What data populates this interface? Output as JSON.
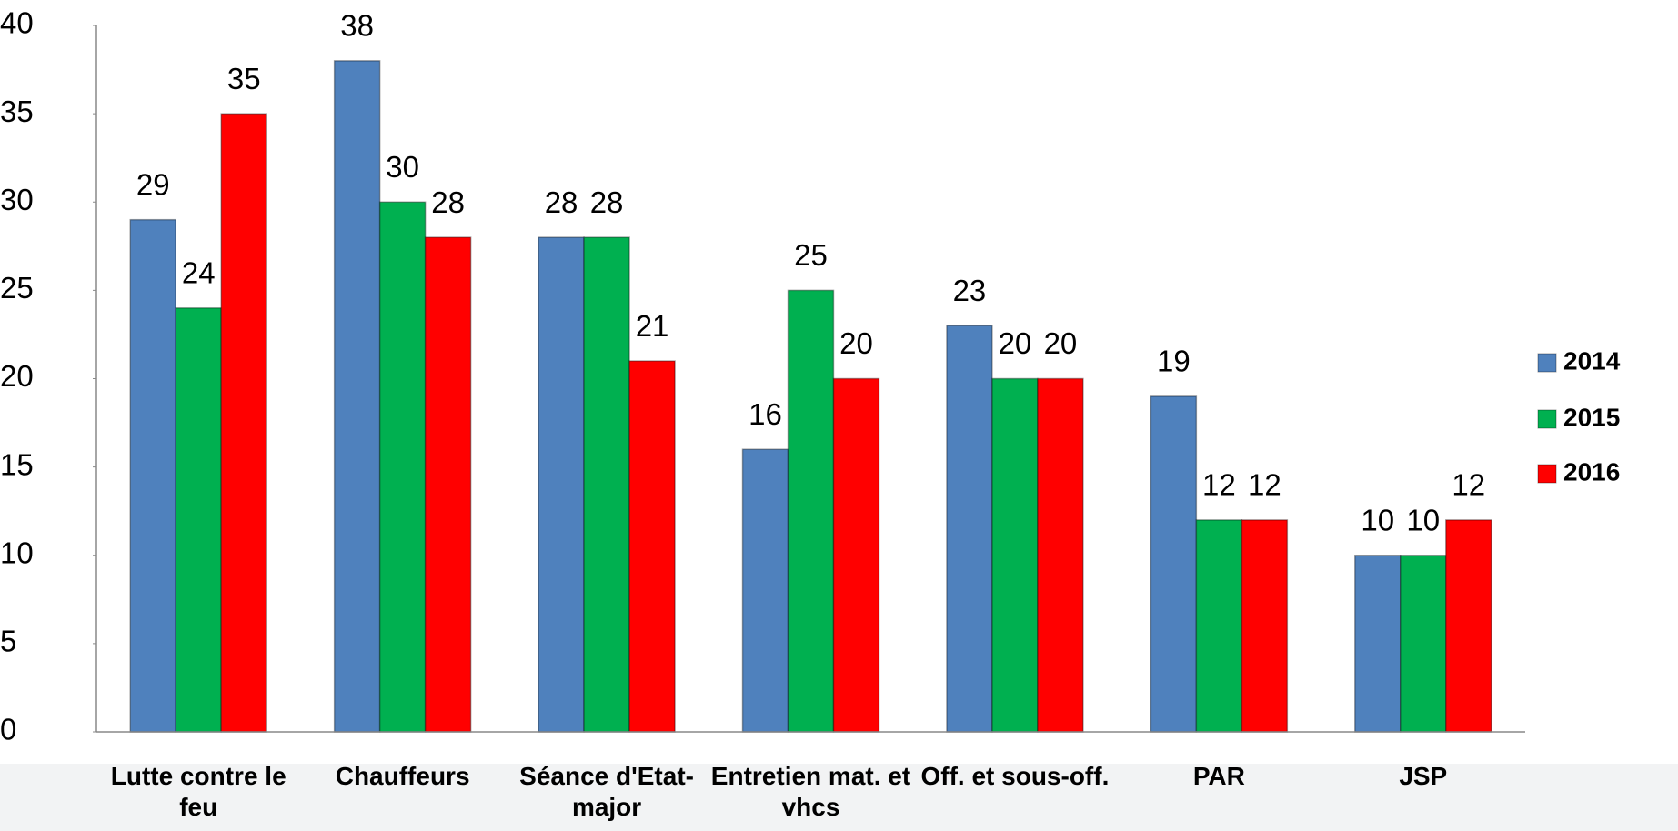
{
  "chart_data": {
    "type": "bar",
    "categories": [
      "Lutte contre le feu",
      "Chauffeurs",
      "Séance d'Etat-major",
      "Entretien mat. et vhcs",
      "Off. et sous-off.",
      "PAR",
      "JSP"
    ],
    "series": [
      {
        "name": "2014",
        "color": "#4f81bd",
        "values": [
          29,
          38,
          28,
          16,
          23,
          19,
          10
        ]
      },
      {
        "name": "2015",
        "color": "#00b050",
        "values": [
          24,
          30,
          28,
          25,
          20,
          12,
          10
        ]
      },
      {
        "name": "2016",
        "color": "#ff0000",
        "values": [
          35,
          28,
          21,
          20,
          20,
          12,
          12
        ]
      }
    ],
    "ylim": [
      0,
      40
    ],
    "yticks": [
      0,
      5,
      10,
      15,
      20,
      25,
      30,
      35,
      40
    ],
    "legend": "right"
  }
}
